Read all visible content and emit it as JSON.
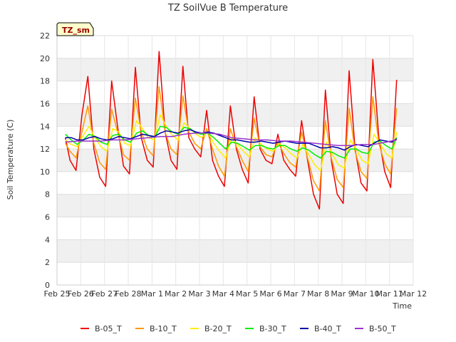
{
  "chart_data": {
    "type": "line",
    "title": "TZ SoilVue B Temperature",
    "tag": "TZ_sm",
    "xlabel": "Time",
    "ylabel": "Soil Temperature (C)",
    "ylim": [
      0,
      22
    ],
    "yticks": [
      0,
      2,
      4,
      6,
      8,
      10,
      12,
      14,
      16,
      18,
      20,
      22
    ],
    "xlim": [
      0,
      15
    ],
    "xticks": [
      0,
      1,
      2,
      3,
      4,
      5,
      6,
      7,
      8,
      9,
      10,
      11,
      12,
      13,
      14,
      15
    ],
    "xtick_labels": [
      "Feb 25",
      "Feb 26",
      "Feb 27",
      "Feb 28",
      "Mar 1",
      "Mar 2",
      "Mar 3",
      "Mar 4",
      "Mar 5",
      "Mar 6",
      "Mar 7",
      "Mar 8",
      "Mar 9",
      "Mar 10",
      "Mar 11",
      "Mar 12"
    ],
    "x_units": "days since Feb 25",
    "grid": true,
    "legend_position": "bottom",
    "series": [
      {
        "name": "B-05_T",
        "color": "#ee0000",
        "x": [
          0.35,
          0.55,
          0.8,
          1.05,
          1.3,
          1.55,
          1.8,
          2.05,
          2.3,
          2.55,
          2.8,
          3.05,
          3.3,
          3.55,
          3.8,
          4.05,
          4.3,
          4.55,
          4.8,
          5.05,
          5.3,
          5.55,
          5.8,
          6.05,
          6.3,
          6.55,
          6.8,
          7.05,
          7.3,
          7.55,
          7.8,
          8.05,
          8.3,
          8.55,
          8.8,
          9.05,
          9.3,
          9.55,
          9.8,
          10.05,
          10.3,
          10.55,
          10.8,
          11.05,
          11.3,
          11.55,
          11.8,
          12.05,
          12.3,
          12.55,
          12.8,
          13.05,
          13.3,
          13.55,
          13.8,
          14.05,
          14.3
        ],
        "y": [
          13.0,
          11.0,
          10.1,
          15.0,
          18.4,
          12.0,
          9.5,
          8.7,
          18.0,
          14.0,
          10.5,
          9.8,
          19.2,
          13.0,
          11.0,
          10.4,
          20.6,
          13.5,
          11.0,
          10.2,
          19.3,
          13.0,
          12.0,
          11.3,
          15.4,
          11.0,
          9.6,
          8.7,
          15.8,
          12.0,
          10.2,
          9.0,
          16.6,
          12.0,
          11.0,
          10.7,
          13.3,
          11.0,
          10.2,
          9.6,
          14.5,
          11.0,
          8.0,
          6.7,
          17.2,
          11.0,
          8.0,
          7.2,
          18.9,
          12.0,
          9.0,
          8.3,
          19.9,
          13.0,
          10.0,
          8.6,
          18.1
        ]
      },
      {
        "name": "B-10_T",
        "color": "#ff9900",
        "x": [
          0.35,
          0.55,
          0.8,
          1.05,
          1.3,
          1.55,
          1.8,
          2.05,
          2.3,
          2.55,
          2.8,
          3.05,
          3.3,
          3.55,
          3.8,
          4.05,
          4.3,
          4.55,
          4.8,
          5.05,
          5.3,
          5.55,
          5.8,
          6.05,
          6.3,
          6.55,
          6.8,
          7.05,
          7.3,
          7.55,
          7.8,
          8.05,
          8.3,
          8.55,
          8.8,
          9.05,
          9.3,
          9.55,
          9.8,
          10.05,
          10.3,
          10.55,
          10.8,
          11.05,
          11.3,
          11.55,
          11.8,
          12.05,
          12.3,
          12.55,
          12.8,
          13.05,
          13.3,
          13.55,
          13.8,
          14.05,
          14.3
        ],
        "y": [
          12.5,
          11.8,
          11.2,
          13.5,
          15.8,
          12.5,
          10.8,
          10.2,
          15.5,
          13.5,
          11.5,
          11.0,
          16.5,
          13.5,
          12.0,
          11.4,
          17.5,
          13.5,
          12.0,
          11.5,
          16.7,
          13.5,
          12.5,
          12.0,
          13.8,
          12.0,
          10.5,
          9.6,
          13.8,
          12.2,
          11.0,
          10.0,
          14.7,
          12.2,
          11.5,
          11.3,
          12.6,
          11.6,
          10.8,
          10.4,
          13.5,
          11.2,
          9.2,
          8.3,
          14.5,
          11.2,
          9.3,
          8.6,
          15.6,
          11.8,
          10.0,
          9.4,
          16.6,
          12.5,
          10.7,
          9.8,
          15.6
        ]
      },
      {
        "name": "B-20_T",
        "color": "#ffee00",
        "x": [
          0.35,
          0.6,
          0.85,
          1.1,
          1.35,
          1.6,
          1.85,
          2.1,
          2.35,
          2.6,
          2.85,
          3.1,
          3.35,
          3.6,
          3.85,
          4.1,
          4.35,
          4.6,
          4.85,
          5.1,
          5.35,
          5.6,
          5.85,
          6.1,
          6.35,
          6.6,
          6.85,
          7.1,
          7.35,
          7.6,
          7.85,
          8.1,
          8.35,
          8.6,
          8.85,
          9.1,
          9.35,
          9.6,
          9.85,
          10.1,
          10.35,
          10.6,
          10.85,
          11.1,
          11.35,
          11.6,
          11.85,
          12.1,
          12.35,
          12.6,
          12.85,
          13.1,
          13.35,
          13.6,
          13.85,
          14.1,
          14.3
        ],
        "y": [
          12.8,
          12.4,
          12.2,
          13.2,
          14.0,
          13.0,
          12.2,
          11.8,
          13.8,
          13.5,
          12.5,
          12.3,
          14.5,
          13.8,
          13.0,
          12.8,
          15.0,
          14.0,
          13.2,
          12.8,
          14.3,
          13.8,
          13.3,
          13.0,
          13.5,
          12.5,
          11.8,
          11.2,
          13.0,
          12.4,
          11.8,
          11.3,
          13.0,
          12.4,
          12.0,
          11.8,
          12.5,
          12.1,
          11.6,
          11.2,
          12.4,
          11.5,
          10.6,
          10.1,
          12.6,
          11.5,
          10.6,
          10.3,
          12.8,
          12.0,
          11.0,
          10.7,
          13.3,
          12.5,
          11.6,
          11.2,
          13.5
        ]
      },
      {
        "name": "B-30_T",
        "color": "#00ee00",
        "x": [
          0.35,
          0.6,
          0.85,
          1.1,
          1.35,
          1.6,
          1.85,
          2.1,
          2.35,
          2.6,
          2.85,
          3.1,
          3.35,
          3.6,
          3.85,
          4.1,
          4.35,
          4.6,
          4.85,
          5.1,
          5.35,
          5.6,
          5.85,
          6.1,
          6.35,
          6.6,
          6.85,
          7.1,
          7.35,
          7.6,
          7.85,
          8.1,
          8.35,
          8.6,
          8.85,
          9.1,
          9.35,
          9.6,
          9.85,
          10.1,
          10.35,
          10.6,
          10.85,
          11.1,
          11.35,
          11.6,
          11.85,
          12.1,
          12.35,
          12.6,
          12.85,
          13.1,
          13.35,
          13.6,
          13.85,
          14.1,
          14.3
        ],
        "y": [
          13.3,
          12.8,
          12.4,
          12.8,
          13.3,
          13.1,
          12.6,
          12.4,
          13.2,
          13.3,
          12.8,
          12.6,
          13.4,
          13.6,
          13.2,
          13.0,
          14.0,
          13.9,
          13.5,
          13.3,
          13.9,
          13.8,
          13.4,
          13.3,
          13.4,
          13.0,
          12.5,
          12.0,
          12.6,
          12.5,
          12.2,
          11.9,
          12.3,
          12.3,
          12.1,
          12.0,
          12.3,
          12.3,
          12.0,
          11.8,
          12.1,
          11.9,
          11.5,
          11.2,
          11.8,
          11.7,
          11.4,
          11.2,
          12.0,
          12.0,
          11.7,
          11.6,
          12.6,
          12.7,
          12.3,
          12.0,
          13.0
        ]
      },
      {
        "name": "B-40_T",
        "color": "#0000aa",
        "x": [
          0.35,
          0.6,
          0.85,
          1.1,
          1.35,
          1.6,
          1.85,
          2.1,
          2.35,
          2.6,
          2.85,
          3.1,
          3.35,
          3.6,
          3.85,
          4.1,
          4.35,
          4.6,
          4.85,
          5.1,
          5.35,
          5.6,
          5.85,
          6.1,
          6.35,
          6.6,
          6.85,
          7.1,
          7.35,
          7.6,
          7.85,
          8.1,
          8.35,
          8.6,
          8.85,
          9.1,
          9.35,
          9.6,
          9.85,
          10.1,
          10.35,
          10.6,
          10.85,
          11.1,
          11.35,
          11.6,
          11.85,
          12.1,
          12.35,
          12.6,
          12.85,
          13.1,
          13.35,
          13.6,
          13.85,
          14.1,
          14.3
        ],
        "y": [
          13.0,
          13.0,
          12.8,
          12.8,
          13.0,
          13.1,
          12.9,
          12.8,
          12.9,
          13.1,
          13.0,
          12.9,
          13.1,
          13.3,
          13.2,
          13.1,
          13.4,
          13.6,
          13.5,
          13.4,
          13.6,
          13.7,
          13.5,
          13.4,
          13.5,
          13.4,
          13.2,
          13.0,
          12.8,
          12.8,
          12.7,
          12.6,
          12.6,
          12.7,
          12.6,
          12.5,
          12.6,
          12.7,
          12.6,
          12.5,
          12.5,
          12.5,
          12.3,
          12.1,
          12.1,
          12.2,
          12.1,
          11.9,
          12.2,
          12.4,
          12.3,
          12.2,
          12.5,
          12.8,
          12.7,
          12.6,
          12.9
        ]
      },
      {
        "name": "B-50_T",
        "color": "#9932cc",
        "x": [
          0.35,
          0.85,
          1.35,
          1.85,
          2.35,
          2.85,
          3.35,
          3.85,
          4.35,
          4.85,
          5.35,
          5.85,
          6.35,
          6.85,
          7.35,
          7.85,
          8.35,
          8.85,
          9.35,
          9.85,
          10.35,
          10.85,
          11.35,
          11.85,
          12.35,
          12.85,
          13.35,
          13.85,
          14.3
        ],
        "y": [
          12.6,
          12.7,
          12.7,
          12.7,
          12.8,
          12.8,
          12.9,
          13.0,
          13.1,
          13.1,
          13.3,
          13.4,
          13.4,
          13.3,
          13.0,
          12.9,
          12.8,
          12.8,
          12.7,
          12.7,
          12.6,
          12.5,
          12.4,
          12.3,
          12.3,
          12.4,
          12.4,
          12.6,
          12.8
        ]
      }
    ]
  }
}
